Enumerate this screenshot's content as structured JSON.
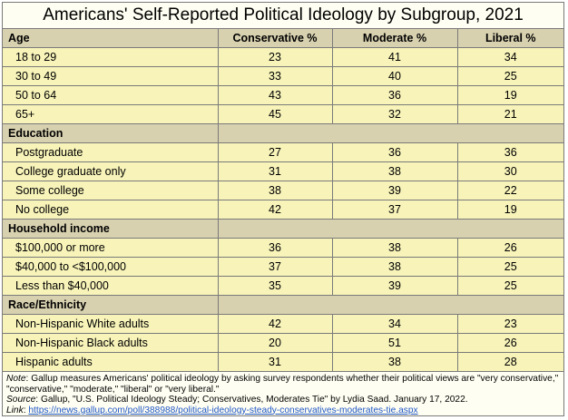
{
  "title": "Americans' Self-Reported Political Ideology by Subgroup, 2021",
  "columns": [
    "Age",
    "Conservative %",
    "Moderate %",
    "Liberal %"
  ],
  "sections": [
    {
      "name": "Age",
      "rows": [
        {
          "label": "18 to 29",
          "conservative": "23",
          "moderate": "41",
          "liberal": "34"
        },
        {
          "label": "30 to 49",
          "conservative": "33",
          "moderate": "40",
          "liberal": "25"
        },
        {
          "label": "50 to 64",
          "conservative": "43",
          "moderate": "36",
          "liberal": "19"
        },
        {
          "label": "65+",
          "conservative": "45",
          "moderate": "32",
          "liberal": "21"
        }
      ]
    },
    {
      "name": "Education",
      "rows": [
        {
          "label": "Postgraduate",
          "conservative": "27",
          "moderate": "36",
          "liberal": "36"
        },
        {
          "label": "College graduate only",
          "conservative": "31",
          "moderate": "38",
          "liberal": "30"
        },
        {
          "label": "Some college",
          "conservative": "38",
          "moderate": "39",
          "liberal": "22"
        },
        {
          "label": "No college",
          "conservative": "42",
          "moderate": "37",
          "liberal": "19"
        }
      ]
    },
    {
      "name": "Household income",
      "rows": [
        {
          "label": "$100,000 or more",
          "conservative": "36",
          "moderate": "38",
          "liberal": "26"
        },
        {
          "label": "$40,000 to <$100,000",
          "conservative": "37",
          "moderate": "38",
          "liberal": "25"
        },
        {
          "label": "Less than $40,000",
          "conservative": "35",
          "moderate": "39",
          "liberal": "25"
        }
      ]
    },
    {
      "name": "Race/Ethnicity",
      "rows": [
        {
          "label": "Non-Hispanic White adults",
          "conservative": "42",
          "moderate": "34",
          "liberal": "23"
        },
        {
          "label": "Non-Hispanic Black adults",
          "conservative": "20",
          "moderate": "51",
          "liberal": "26"
        },
        {
          "label": "Hispanic adults",
          "conservative": "31",
          "moderate": "38",
          "liberal": "28"
        }
      ]
    }
  ],
  "notes": {
    "note_label": "Note",
    "note_text": ": Gallup measures Americans' political ideology by asking survey respondents whether their political views are \"very conservative,\" \"conservative,\" \"moderate,\" \"liberal\" or \"very liberal.\"",
    "source_label": "Source",
    "source_text": ": Gallup, \"U.S. Political Ideology Steady; Conservatives, Moderates Tie\" by Lydia Saad.  January 17, 2022.",
    "link_label": "Link",
    "link_sep": ": ",
    "link_url": "https://news.gallup.com/poll/388988/political-ideology-steady-conservatives-moderates-tie.aspx"
  },
  "colors": {
    "header_bg": "#d8d1b0",
    "row_bg": "#f7f3b9",
    "page_bg": "#fffef2",
    "border": "#7a7a7a",
    "link": "#1f58c7"
  }
}
